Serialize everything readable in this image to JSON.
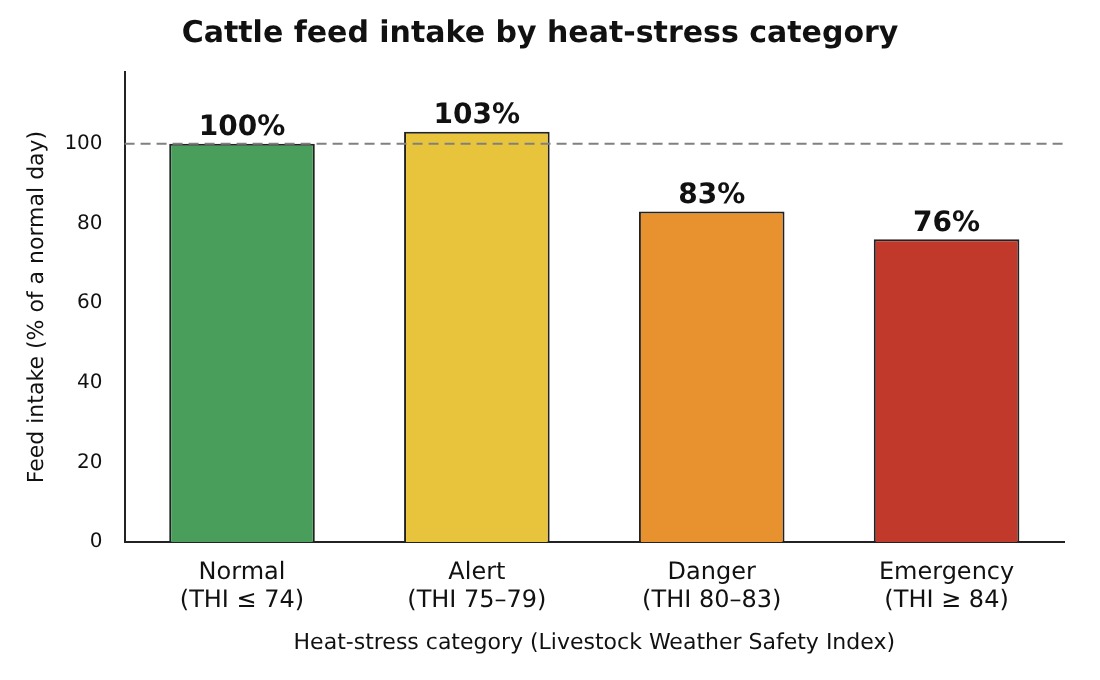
{
  "chart_data": {
    "type": "bar",
    "title": "Cattle feed intake by heat-stress category",
    "xlabel": "Heat-stress category (Livestock Weather Safety Index)",
    "ylabel": "Feed intake (% of a normal day)",
    "categories": [
      "Normal\n(THI ≤ 74)",
      "Alert\n(THI 75–79)",
      "Danger\n(THI 80–83)",
      "Emergency\n(THI ≥ 84)"
    ],
    "values": [
      100,
      103,
      83,
      76
    ],
    "colors": [
      "#4a9e5c",
      "#e8c43c",
      "#e8922f",
      "#c0392b"
    ],
    "value_labels": [
      "100%",
      "103%",
      "83%",
      "76%"
    ],
    "ylim": [
      0,
      118
    ],
    "yticks": [
      0,
      20,
      40,
      60,
      80,
      100
    ],
    "ref_lines": [
      {
        "axis": "y",
        "value": 100,
        "color": "#808080",
        "line_style": "dashed"
      }
    ],
    "grid": false,
    "legend": false
  }
}
